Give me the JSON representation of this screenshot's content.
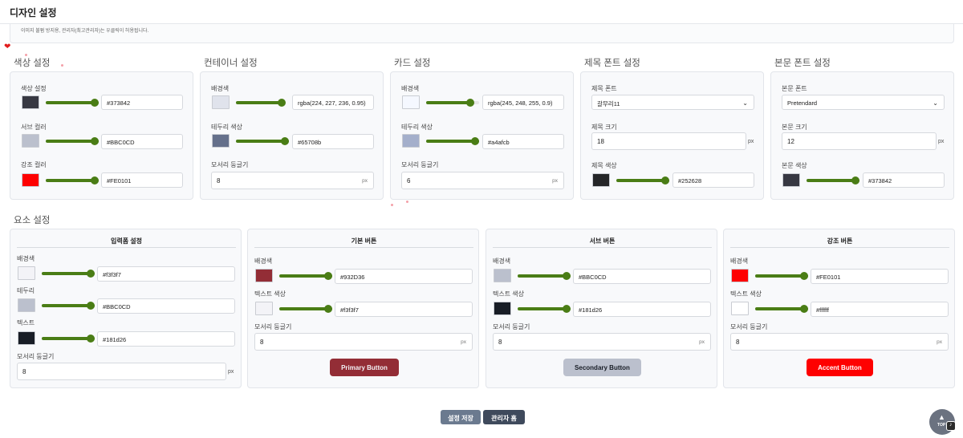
{
  "page": {
    "title": "디자인 설정",
    "notice": "이미지 불펌 방지용, 관리자(최고관리자)는 우클릭이 허용됩니다."
  },
  "colors": {
    "slider": "#4a7d15",
    "primary_button": "#932D36",
    "secondary_button": "#BBC0CD",
    "accent_button": "#FE0101",
    "save_button": "#6b7a8f",
    "home_button": "#3f4a5c"
  },
  "color_settings": {
    "title": "색상 설정",
    "rows": [
      {
        "label": "색상 설정",
        "value": "#373842",
        "swatch": "#373842"
      },
      {
        "label": "서브 컬러",
        "value": "#BBC0CD",
        "swatch": "#BBC0CD"
      },
      {
        "label": "강조 컬러",
        "value": "#FE0101",
        "swatch": "#FE0101"
      }
    ]
  },
  "container_settings": {
    "title": "컨테이너 설정",
    "bg_label": "배경색",
    "bg_value": "rgba(224, 227, 236, 0.95)",
    "bg_swatch": "#e0e3ec",
    "border_label": "테두리 색상",
    "border_value": "#65708b",
    "border_swatch": "#65708b",
    "radius_label": "모서리 둥글기",
    "radius_value": "8",
    "radius_unit": "px"
  },
  "card_settings": {
    "title": "카드 설정",
    "bg_label": "배경색",
    "bg_value": "rgba(245, 248, 255, 0.9)",
    "bg_swatch": "#f5f8ff",
    "border_label": "테두리 색상",
    "border_value": "#a4afcb",
    "border_swatch": "#a4afcb",
    "radius_label": "모서리 둥글기",
    "radius_value": "6",
    "radius_unit": "px"
  },
  "title_font": {
    "title": "제목 폰트 설정",
    "font_label": "제목 폰트",
    "font_value": "갈무리11",
    "size_label": "제목 크기",
    "size_value": "18",
    "size_unit": "px",
    "color_label": "제목 색상",
    "color_value": "#252628",
    "color_swatch": "#252628"
  },
  "body_font": {
    "title": "본문 폰트 설정",
    "font_label": "본문 폰트",
    "font_value": "Pretendard",
    "size_label": "본문 크기",
    "size_value": "12",
    "size_unit": "px",
    "color_label": "본문 색상",
    "color_value": "#373842",
    "color_swatch": "#373842"
  },
  "element_settings": {
    "title": "요소 설정"
  },
  "input_settings": {
    "head": "입력폼 설정",
    "bg_label": "배경색",
    "bg_value": "#f3f3f7",
    "bg_swatch": "#f3f3f7",
    "border_label": "테두리",
    "border_value": "#BBC0CD",
    "border_swatch": "#BBC0CD",
    "text_label": "텍스트",
    "text_value": "#181d26",
    "text_swatch": "#181d26",
    "radius_label": "모서리 둥글기",
    "radius_value": "8",
    "radius_unit": "px"
  },
  "buttons": [
    {
      "head": "기본 버튼",
      "bg_label": "배경색",
      "bg_value": "#932D36",
      "bg_swatch": "#932D36",
      "text_label": "텍스트 색상",
      "text_value": "#f3f3f7",
      "text_swatch": "#f3f3f7",
      "radius_label": "모서리 둥글기",
      "radius_value": "8",
      "radius_unit": "px",
      "demo_label": "Primary Button",
      "demo_bg": "#932D36",
      "demo_fg": "#f3f3f7"
    },
    {
      "head": "서브 버튼",
      "bg_label": "배경색",
      "bg_value": "#BBC0CD",
      "bg_swatch": "#BBC0CD",
      "text_label": "텍스트 색상",
      "text_value": "#181d26",
      "text_swatch": "#181d26",
      "radius_label": "모서리 둥글기",
      "radius_value": "8",
      "radius_unit": "px",
      "demo_label": "Secondary Button",
      "demo_bg": "#BBC0CD",
      "demo_fg": "#181d26"
    },
    {
      "head": "강조 버튼",
      "bg_label": "배경색",
      "bg_value": "#FE0101",
      "bg_swatch": "#FE0101",
      "text_label": "텍스트 색상",
      "text_value": "#ffffff",
      "text_swatch": "#ffffff",
      "radius_label": "모서리 둥글기",
      "radius_value": "8",
      "radius_unit": "px",
      "demo_label": "Accent Button",
      "demo_bg": "#FE0101",
      "demo_fg": "#ffffff"
    }
  ],
  "footer": {
    "save_label": "설정 저장",
    "home_label": "관리자 홈"
  },
  "to_top": {
    "label": "TOP",
    "arrow": "▲",
    "mini_icon": "♪"
  },
  "decor": {
    "heart_icon": "heart-icon"
  }
}
